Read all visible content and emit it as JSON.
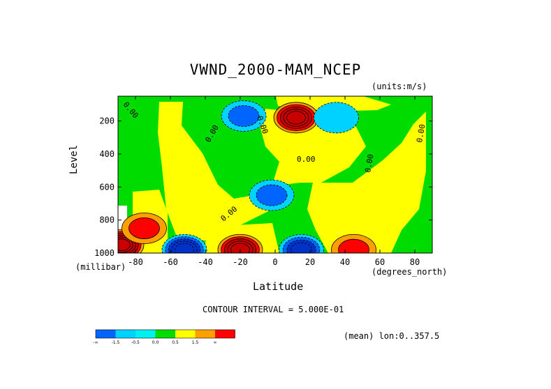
{
  "chart_data": {
    "type": "heatmap",
    "title": "VWND_2000-MAM_NCEP",
    "units_label": "(units:m/s)",
    "xlabel": "Latitude",
    "x_units": "(degrees_north)",
    "ylabel": "Level",
    "y_units": "(millibar)",
    "xlim": [
      -90,
      90
    ],
    "ylim": [
      1000,
      50
    ],
    "x_ticks": [
      -80,
      -60,
      -40,
      -20,
      0,
      20,
      40,
      60,
      80
    ],
    "x_tick_labels": [
      "-80",
      "-60",
      "-40",
      "-20",
      "0",
      "20",
      "40",
      "60",
      "80"
    ],
    "y_ticks": [
      200,
      400,
      600,
      800,
      1000
    ],
    "y_tick_labels": [
      "200",
      "400",
      "600",
      "800",
      "1000"
    ],
    "contour_interval_text": "CONTOUR INTERVAL = 5.000E-01",
    "mean_text": "(mean) lon:0..357.5",
    "contour_labels": [
      "0.00",
      "0.00",
      "0.00",
      "0.00",
      "0.00",
      "0.00",
      "0.00"
    ],
    "colorbar": {
      "colors": [
        "#0064ff",
        "#00d2ff",
        "#00f0f0",
        "#00dc00",
        "#ffff00",
        "#ffa000",
        "#ff0000"
      ],
      "labels": [
        "-∞",
        "-1.5",
        "-0.5",
        "0.0",
        "0.5",
        "1.5",
        "∞"
      ]
    },
    "features": [
      {
        "lat": 12,
        "lev": 180,
        "v": 2.5
      },
      {
        "lat": -20,
        "lev": 980,
        "v": 2.5
      },
      {
        "lat": -88,
        "lev": 950,
        "v": 3.0
      },
      {
        "lat": -75,
        "lev": 850,
        "v": 1.2
      },
      {
        "lat": 45,
        "lev": 980,
        "v": 0.8
      },
      {
        "lat": -52,
        "lev": 980,
        "v": -2.5
      },
      {
        "lat": 15,
        "lev": 980,
        "v": -2.0
      },
      {
        "lat": -18,
        "lev": 170,
        "v": -1.0
      },
      {
        "lat": -2,
        "lev": 650,
        "v": -0.9
      },
      {
        "lat": 35,
        "lev": 180,
        "v": -0.7
      }
    ]
  }
}
